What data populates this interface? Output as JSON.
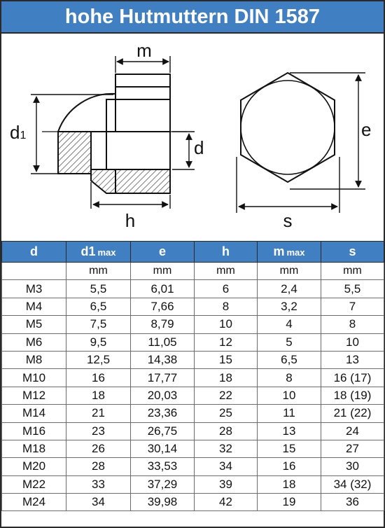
{
  "title": "hohe Hutmuttern DIN 1587",
  "colors": {
    "header_bg": "#3f7fc2",
    "header_text": "#ffffff"
  },
  "drawing": {
    "labels": {
      "m": "m",
      "d1_main": "d",
      "d1_sub": "1",
      "d": "d",
      "h": "h",
      "e": "e",
      "s": "s"
    }
  },
  "table": {
    "headers": [
      {
        "main": "d",
        "sub": ""
      },
      {
        "main": "d1",
        "sub": "max"
      },
      {
        "main": "e",
        "sub": ""
      },
      {
        "main": "h",
        "sub": ""
      },
      {
        "main": "m",
        "sub": "max"
      },
      {
        "main": "s",
        "sub": ""
      }
    ],
    "units": [
      "",
      "mm",
      "mm",
      "mm",
      "mm",
      "mm"
    ],
    "rows": [
      [
        "M3",
        "5,5",
        "6,01",
        "6",
        "2,4",
        "5,5"
      ],
      [
        "M4",
        "6,5",
        "7,66",
        "8",
        "3,2",
        "7"
      ],
      [
        "M5",
        "7,5",
        "8,79",
        "10",
        "4",
        "8"
      ],
      [
        "M6",
        "9,5",
        "11,05",
        "12",
        "5",
        "10"
      ],
      [
        "M8",
        "12,5",
        "14,38",
        "15",
        "6,5",
        "13"
      ],
      [
        "M10",
        "16",
        "17,77",
        "18",
        "8",
        "16 (17)"
      ],
      [
        "M12",
        "18",
        "20,03",
        "22",
        "10",
        "18 (19)"
      ],
      [
        "M14",
        "21",
        "23,36",
        "25",
        "11",
        "21 (22)"
      ],
      [
        "M16",
        "23",
        "26,75",
        "28",
        "13",
        "24"
      ],
      [
        "M18",
        "26",
        "30,14",
        "32",
        "15",
        "27"
      ],
      [
        "M20",
        "28",
        "33,53",
        "34",
        "16",
        "30"
      ],
      [
        "M22",
        "33",
        "37,29",
        "39",
        "18",
        "34 (32)"
      ],
      [
        "M24",
        "34",
        "39,98",
        "42",
        "19",
        "36"
      ]
    ]
  }
}
